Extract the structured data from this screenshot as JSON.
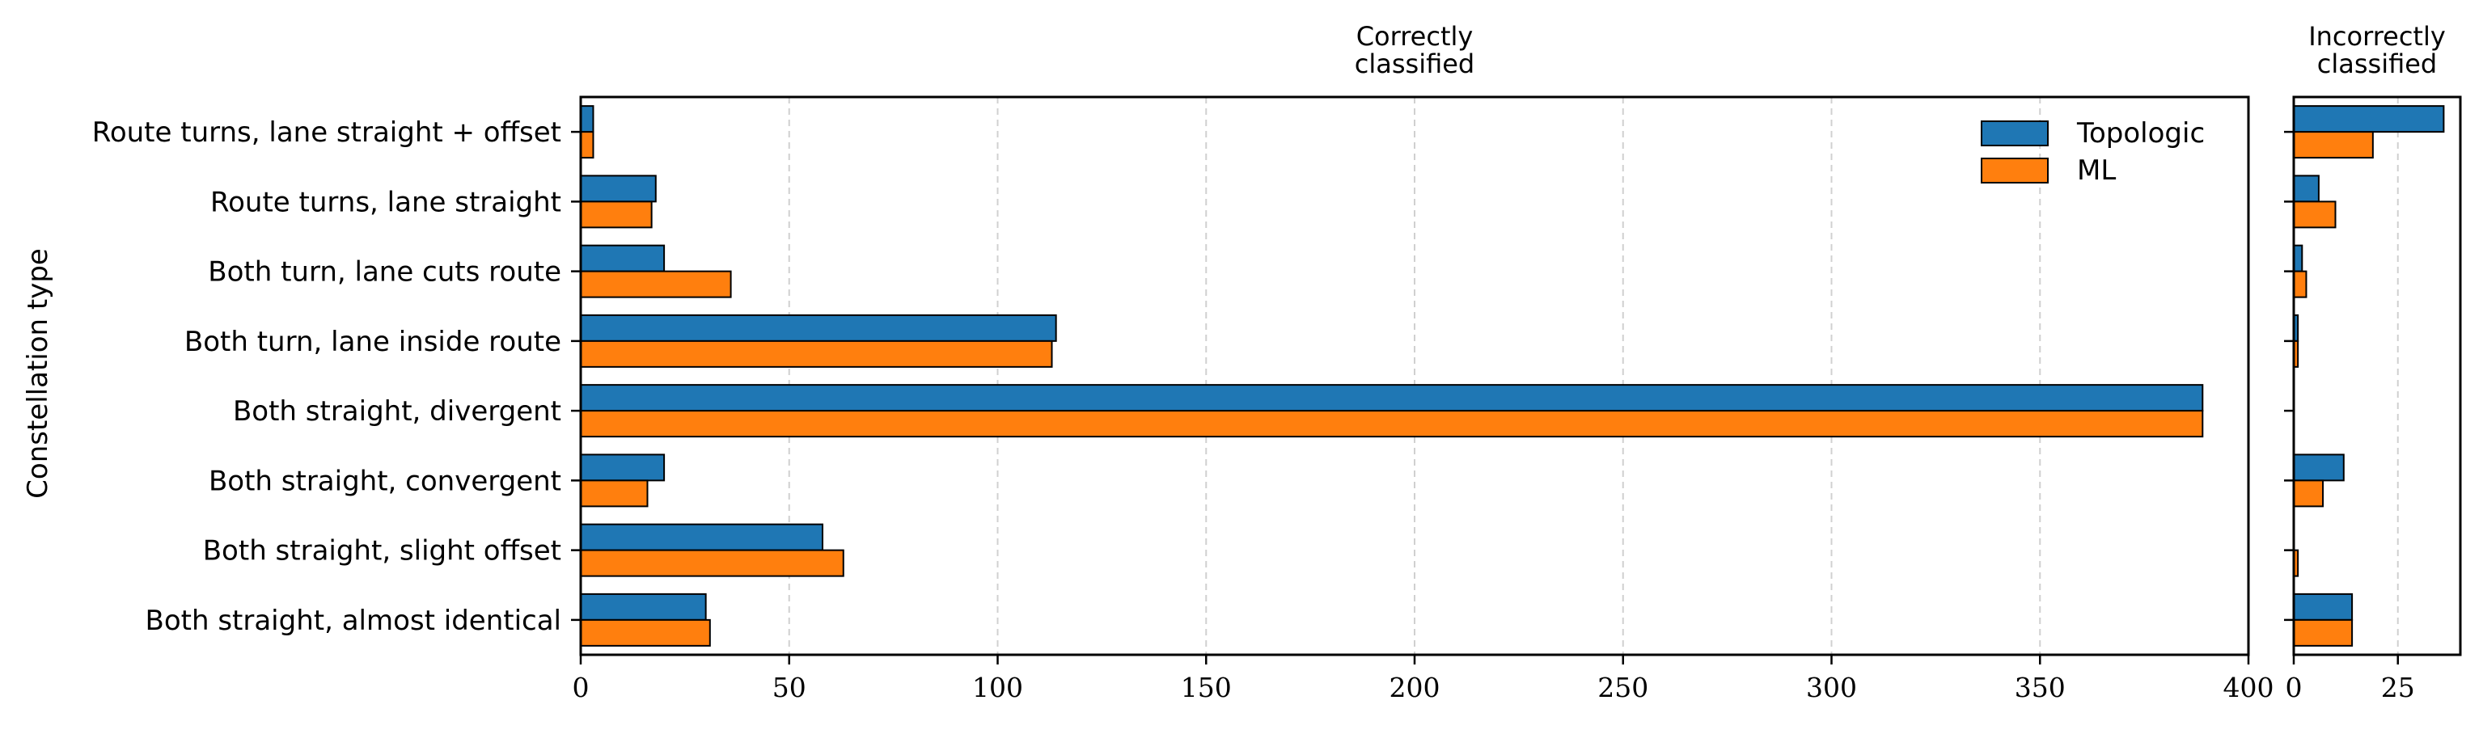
{
  "chart_data": [
    {
      "type": "bar",
      "orientation": "horizontal",
      "title": "Correctly\nclassified",
      "ylabel": "Constellation type",
      "categories": [
        "Route turns, lane straight + offset",
        "Route turns, lane straight",
        "Both turn, lane cuts route",
        "Both turn, lane inside route",
        "Both straight, divergent",
        "Both straight, convergent",
        "Both straight, slight offset",
        "Both straight, almost identical"
      ],
      "series": [
        {
          "name": "Topologic",
          "color": "#1f77b4",
          "values": [
            3,
            18,
            20,
            114,
            389,
            20,
            58,
            30
          ]
        },
        {
          "name": "ML",
          "color": "#ff7f0e",
          "values": [
            3,
            17,
            36,
            113,
            389,
            16,
            63,
            31
          ]
        }
      ],
      "xlim": [
        0,
        400
      ],
      "xticks": [
        0,
        50,
        100,
        150,
        200,
        250,
        300,
        350,
        400
      ],
      "grid": "x",
      "legend": "top-right"
    },
    {
      "type": "bar",
      "orientation": "horizontal",
      "title": "Incorrectly\nclassified",
      "categories": [
        "Route turns, lane straight + offset",
        "Route turns, lane straight",
        "Both turn, lane cuts route",
        "Both turn, lane inside route",
        "Both straight, divergent",
        "Both straight, convergent",
        "Both straight, slight offset",
        "Both straight, almost identical"
      ],
      "series": [
        {
          "name": "Topologic",
          "color": "#1f77b4",
          "values": [
            36,
            6,
            2,
            1,
            0,
            12,
            0,
            14
          ]
        },
        {
          "name": "ML",
          "color": "#ff7f0e",
          "values": [
            19,
            10,
            3,
            1,
            0,
            7,
            1,
            14
          ]
        }
      ],
      "xlim": [
        0,
        40
      ],
      "xticks": [
        0,
        25
      ],
      "grid": "x"
    }
  ]
}
